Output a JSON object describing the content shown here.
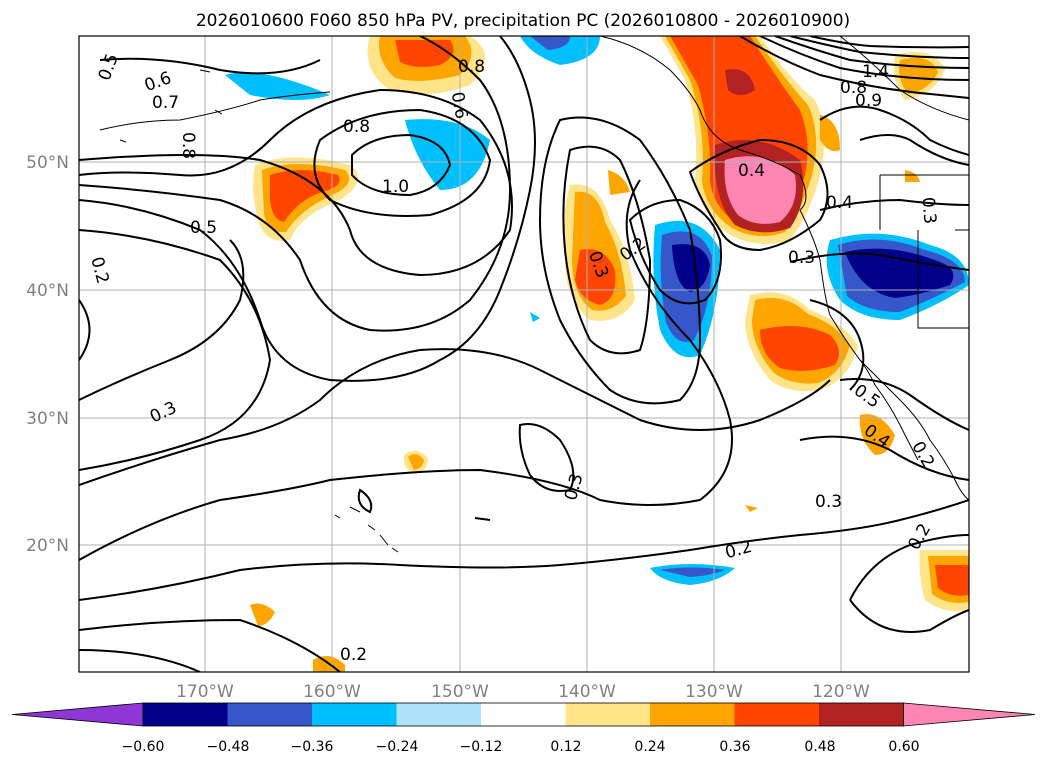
{
  "figure": {
    "title": "2026010600 F060 850 hPa PV, precipitation PC (2026010800 - 2026010900)"
  },
  "map": {
    "lat_labels": [
      "50°N",
      "40°N",
      "30°N",
      "20°N"
    ],
    "lon_labels": [
      "170°W",
      "160°W",
      "150°W",
      "140°W",
      "130°W",
      "120°W"
    ],
    "contour_labels": [
      "1.4",
      "1.0",
      "0.9",
      "0.8",
      "0.8",
      "0.8",
      "0.8",
      "0.7",
      "0.6",
      "0.6",
      "0.5",
      "0.5",
      "0.5",
      "0.4",
      "0.4",
      "0.4",
      "0.3",
      "0.3",
      "0.3",
      "0.3",
      "0.3",
      "0.3",
      "0.2",
      "0.2",
      "0.2",
      "0.2",
      "0.2",
      "0.2"
    ]
  },
  "colorbar": {
    "ticks": [
      "−0.60",
      "−0.48",
      "−0.36",
      "−0.24",
      "−0.12",
      "0.12",
      "0.24",
      "0.36",
      "0.48",
      "0.60"
    ],
    "colors": [
      "#8e36d6",
      "#00008b",
      "#3657c9",
      "#00bfff",
      "#afe2fb",
      "#ffffff",
      "#ffe48a",
      "#ffa500",
      "#ff4500",
      "#b22222",
      "#ff86b2"
    ]
  }
}
